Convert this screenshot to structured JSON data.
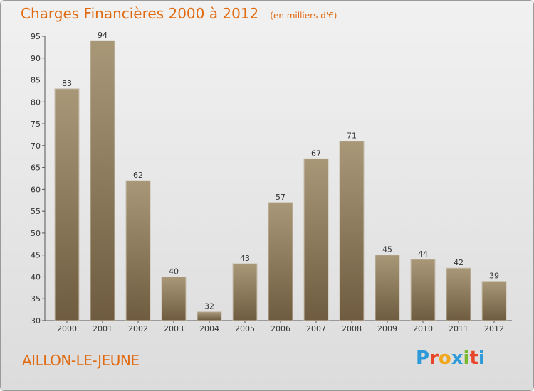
{
  "header": {
    "title": "Charges Financières 2000 à 2012",
    "unit": "(en milliers d'€)"
  },
  "footer": {
    "place": "AILLON-LE-JEUNE",
    "brand_letters": [
      "P",
      "r",
      "o",
      "x",
      "i",
      "t",
      "i"
    ],
    "brand_colors": [
      "#2e9ad8",
      "#e8462b",
      "#f2a81d",
      "#2e9ad8",
      "#7ab82f",
      "#e8462b",
      "#2e9ad8"
    ]
  },
  "colors": {
    "bar_top": "#a89878",
    "bar_bottom": "#6f5c40",
    "text_accent": "#e06a10"
  },
  "chart_data": {
    "type": "bar",
    "categories": [
      "2000",
      "2001",
      "2002",
      "2003",
      "2004",
      "2005",
      "2006",
      "2007",
      "2008",
      "2009",
      "2010",
      "2011",
      "2012"
    ],
    "values": [
      83,
      94,
      62,
      40,
      32,
      43,
      57,
      67,
      71,
      45,
      44,
      42,
      39
    ],
    "ylim": [
      30,
      95
    ],
    "yticks": [
      30,
      35,
      40,
      45,
      50,
      55,
      60,
      65,
      70,
      75,
      80,
      85,
      90,
      95
    ],
    "grid": false
  }
}
